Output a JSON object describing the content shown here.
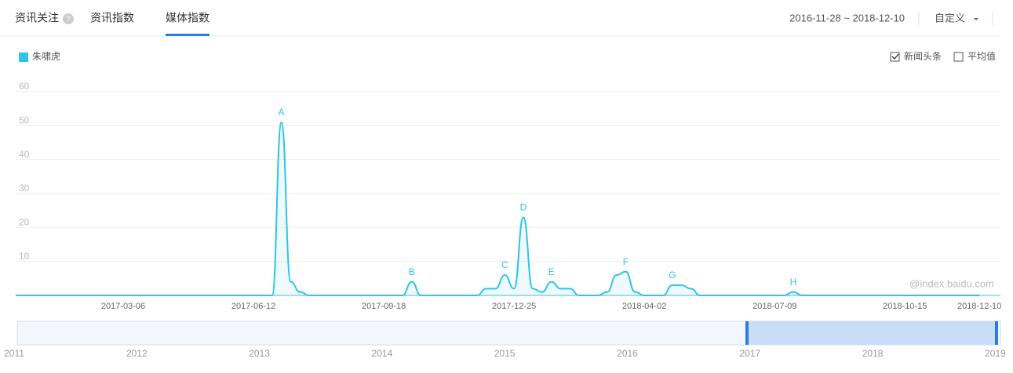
{
  "tabs": [
    "资讯关注",
    "资讯指数",
    "媒体指数"
  ],
  "date_range": "2016-11-28 ~ 2018-12-10",
  "custom_label": "自定义",
  "options": [
    {
      "label": "新闻头条",
      "checked": true
    },
    {
      "label": "平均值",
      "checked": false
    }
  ],
  "watermark": "@index.baidu.com",
  "navigator_years": [
    "2011",
    "2012",
    "2013",
    "2014",
    "2015",
    "2016",
    "2017",
    "2018",
    "2019"
  ],
  "chart_data": {
    "type": "line",
    "categories": [
      null,
      null,
      null,
      null,
      null,
      null,
      null,
      null,
      null,
      null,
      null,
      null,
      null,
      null,
      "2017-03-06",
      null,
      null,
      null,
      null,
      null,
      null,
      null,
      null,
      null,
      null,
      null,
      null,
      null,
      "2017-06-12",
      null,
      null,
      null,
      null,
      null,
      null,
      null,
      null,
      null,
      null,
      null,
      null,
      null,
      "2017-09-18",
      null,
      null,
      null,
      null,
      null,
      null,
      null,
      null,
      null,
      null,
      null,
      null,
      null,
      "2017-12-25",
      null,
      null,
      null,
      null,
      null,
      null,
      null,
      null,
      null,
      null,
      null,
      null,
      null,
      "2018-04-02",
      null,
      null,
      null,
      null,
      null,
      null,
      null,
      null,
      null,
      null,
      null,
      null,
      null,
      "2018-07-09",
      null,
      null,
      null,
      null,
      null,
      null,
      null,
      null,
      null,
      null,
      null,
      null,
      null,
      "2018-10-15",
      null,
      null,
      null,
      null,
      null,
      null,
      null,
      "2018-12-10"
    ],
    "series": [
      {
        "name": "朱啸虎",
        "color": "#2fc4ea",
        "values": [
          0,
          0,
          0,
          0,
          0,
          0,
          0,
          0,
          0,
          0,
          0,
          0,
          0,
          0,
          0,
          0,
          0,
          0,
          0,
          0,
          0,
          0,
          0,
          0,
          0,
          0,
          0,
          0,
          0,
          0,
          0,
          51,
          4,
          1,
          0,
          0,
          0,
          0,
          0,
          0,
          0,
          0,
          0,
          0,
          0,
          4,
          0,
          0,
          0,
          0,
          0,
          0,
          0,
          2,
          2,
          6,
          2,
          23,
          2,
          1,
          4,
          2,
          2,
          0,
          0,
          0,
          1,
          6,
          7,
          1,
          0,
          0,
          0,
          3,
          3,
          2,
          0,
          0,
          0,
          0,
          0,
          0,
          0,
          0,
          0,
          0,
          1,
          0,
          0,
          0,
          0,
          0,
          0,
          0,
          0,
          0,
          0,
          0,
          0,
          0,
          0,
          0,
          0,
          0,
          0,
          0,
          0
        ],
        "point_labels": [
          null,
          null,
          null,
          null,
          null,
          null,
          null,
          null,
          null,
          null,
          null,
          null,
          null,
          null,
          null,
          null,
          null,
          null,
          null,
          null,
          null,
          null,
          null,
          null,
          null,
          null,
          null,
          null,
          null,
          null,
          null,
          "A",
          null,
          null,
          null,
          null,
          null,
          null,
          null,
          null,
          null,
          null,
          null,
          null,
          null,
          "B",
          null,
          null,
          null,
          null,
          null,
          null,
          null,
          null,
          null,
          "C",
          null,
          "D",
          null,
          null,
          "E",
          null,
          null,
          null,
          null,
          null,
          null,
          null,
          "F",
          null,
          null,
          null,
          null,
          "G",
          null,
          null,
          null,
          null,
          null,
          null,
          null,
          null,
          null,
          null,
          null,
          null,
          "H",
          null,
          null,
          null,
          null,
          null,
          null,
          null,
          null,
          null,
          null,
          null,
          null,
          null,
          null,
          null,
          null,
          null,
          null,
          null,
          null
        ]
      }
    ],
    "ylim": [
      0,
      60
    ],
    "yticks": [
      10,
      20,
      30,
      40,
      50,
      60
    ],
    "grid": true
  }
}
